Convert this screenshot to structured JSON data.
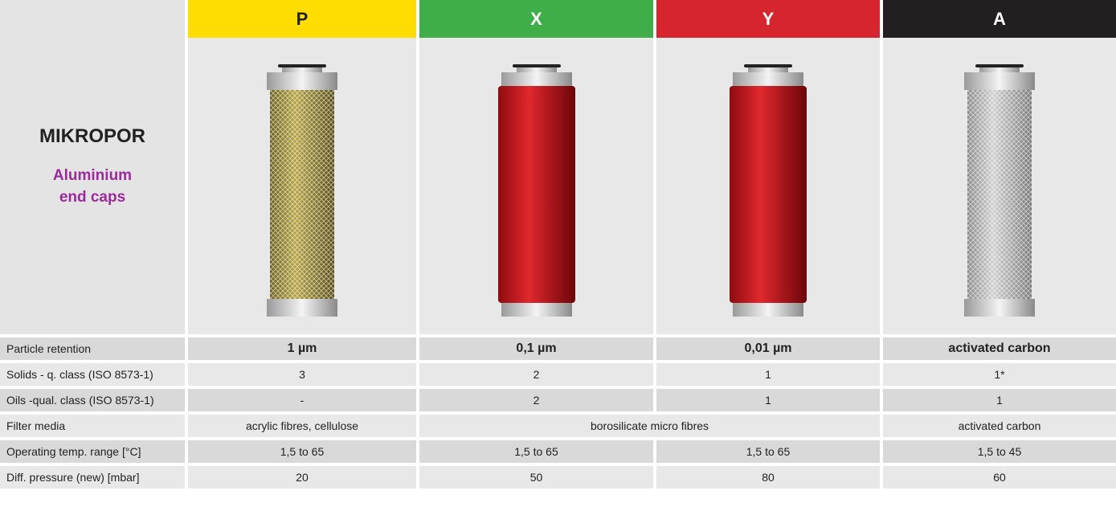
{
  "header": {
    "title": "MIKROPOR",
    "subtitle": "Aluminium end caps",
    "columns": [
      "P",
      "X",
      "Y",
      "A"
    ]
  },
  "table": {
    "rows": [
      {
        "label": "Particle retention",
        "cells": [
          "1 µm",
          "0,1 µm",
          "0,01 µm",
          "activated carbon"
        ]
      },
      {
        "label": "Solids - q. class (ISO 8573-1)",
        "cells": [
          "3",
          "2",
          "1",
          "1*"
        ]
      },
      {
        "label": "Oils -qual. class (ISO 8573-1)",
        "cells": [
          "-",
          "2",
          "1",
          "1"
        ]
      },
      {
        "label": "Filter media",
        "cells": [
          "acrylic fibres, cellulose",
          "borosilicate micro fibres",
          "activated carbon"
        ]
      },
      {
        "label": "Operating temp. range [°C]",
        "cells": [
          "1,5 to 65",
          "1,5 to 65",
          "1,5 to 65",
          "1,5 to 45"
        ]
      },
      {
        "label": "Diff. pressure (new) [mbar]",
        "cells": [
          "20",
          "50",
          "80",
          "60"
        ]
      }
    ]
  }
}
